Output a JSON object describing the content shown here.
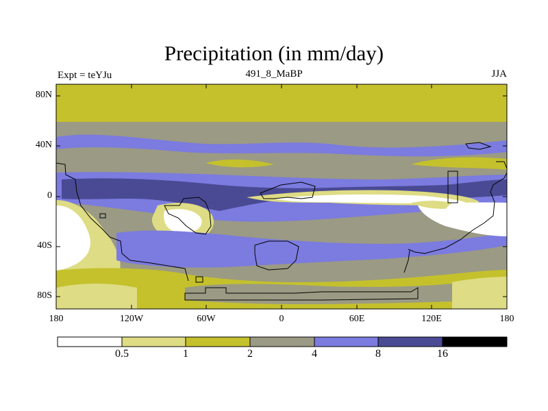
{
  "title": "Precipitation (in mm/day)",
  "left_label": "Expt = teYJu",
  "center_label": "491_8_MaBP",
  "right_label": "JJA",
  "lat_ticks": [
    "80N",
    "40N",
    "0",
    "40S",
    "80S"
  ],
  "lon_ticks": [
    "180",
    "120W",
    "60W",
    "0",
    "60E",
    "120E",
    "180"
  ],
  "colorbar": {
    "labels": [
      "0.5",
      "1",
      "2",
      "4",
      "8",
      "16"
    ],
    "colors": [
      "#ffffff",
      "#dedc84",
      "#c4c12c",
      "#9b9a84",
      "#7b7be0",
      "#4a4a94",
      "#000000"
    ]
  }
}
